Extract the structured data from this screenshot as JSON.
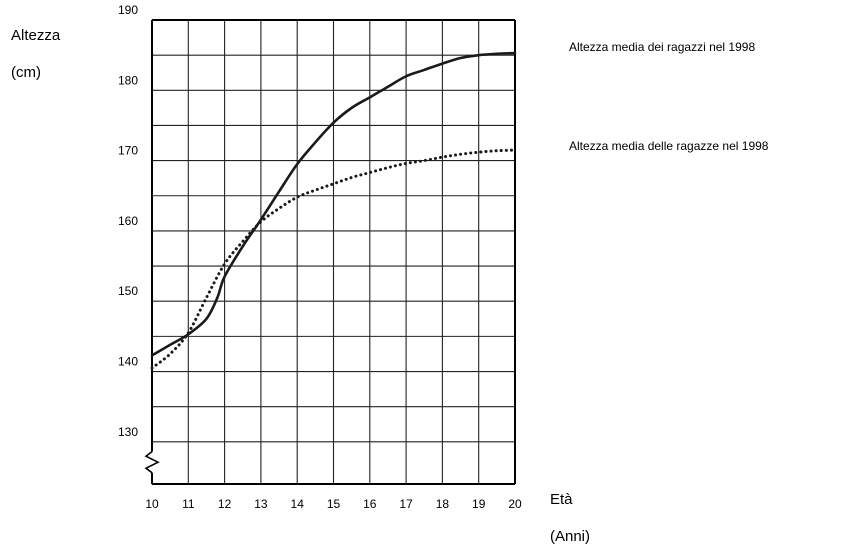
{
  "chart_data": {
    "type": "line",
    "title": "",
    "ylabel": "Altezza",
    "ylabel_unit": "(cm)",
    "xlabel": "Età",
    "xlabel_unit": "(Anni)",
    "xlim": [
      10,
      20
    ],
    "ylim": [
      124,
      190
    ],
    "y_axis_break": true,
    "grid": true,
    "legend_placement": "right",
    "x_ticks": [
      "10",
      "11",
      "12",
      "13",
      "14",
      "15",
      "16",
      "17",
      "18",
      "19",
      "20"
    ],
    "y_ticks": [
      {
        "value": 190,
        "label": "190"
      },
      {
        "value": 180,
        "label": "180"
      },
      {
        "value": 170,
        "label": "170"
      },
      {
        "value": 160,
        "label": "160"
      },
      {
        "value": 150,
        "label": "150"
      },
      {
        "value": 140,
        "label": "140"
      },
      {
        "value": 130,
        "label": "130"
      }
    ],
    "series": [
      {
        "name": "Altezza media dei ragazzi nel 1998",
        "style": "solid",
        "color": "#1a1a1a",
        "x": [
          10,
          10.5,
          11,
          11.5,
          11.8,
          12,
          12.5,
          13,
          13.5,
          14,
          14.5,
          15,
          15.5,
          16,
          16.5,
          17,
          17.5,
          18,
          18.5,
          19,
          19.5,
          20
        ],
        "y": [
          142.3,
          143.8,
          145.3,
          147.5,
          150.5,
          153.5,
          157.8,
          161.6,
          165.6,
          169.5,
          172.6,
          175.4,
          177.5,
          179.0,
          180.5,
          182.0,
          182.9,
          183.8,
          184.6,
          185.0,
          185.2,
          185.3
        ]
      },
      {
        "name": "Altezza media delle ragazze nel 1998",
        "style": "dotted",
        "color": "#1a1a1a",
        "x": [
          10,
          10.5,
          11,
          11.5,
          12,
          12.5,
          13,
          13.5,
          14,
          14.5,
          15,
          15.5,
          16,
          16.5,
          17,
          17.5,
          18,
          18.5,
          19,
          19.5,
          20
        ],
        "y": [
          140.5,
          142.5,
          145.5,
          150.5,
          155.3,
          158.5,
          161.3,
          163.2,
          164.8,
          165.8,
          166.7,
          167.6,
          168.3,
          169.0,
          169.6,
          170.0,
          170.5,
          170.9,
          171.2,
          171.4,
          171.5
        ]
      }
    ]
  }
}
